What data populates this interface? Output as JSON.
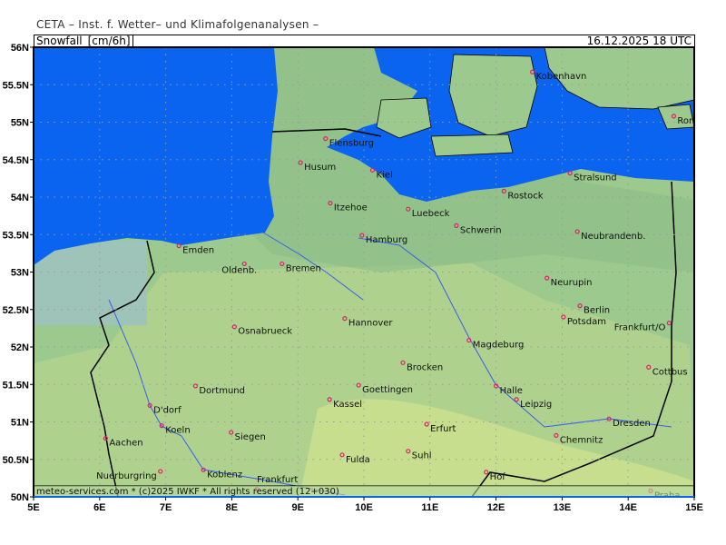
{
  "header": {
    "title": "CETA – Inst. f. Wetter– und Klimafolgenanalysen –",
    "parameter": "Snowfall_[cm/6h]",
    "valid_time": "16.12.2025 18 UTC"
  },
  "footer": {
    "credit": "meteo-services.com * (c)2025 IWKF * All rights reserved (12+030)"
  },
  "colors": {
    "sea": "#0a64f0",
    "land": "#9cc98e",
    "land_light": "#c3dc8f",
    "river": "#3a5cf0",
    "border": "#000000",
    "city": "#e0206a",
    "highlight_label": "#00c000"
  },
  "map": {
    "lon_range": [
      5,
      15
    ],
    "lat_range": [
      50,
      56
    ],
    "lon_ticks": [
      "5E",
      "6E",
      "7E",
      "8E",
      "9E",
      "10E",
      "11E",
      "12E",
      "13E",
      "14E",
      "15E"
    ],
    "lat_ticks": [
      "50N",
      "50.5N",
      "51N",
      "51.5N",
      "52N",
      "52.5N",
      "53N",
      "53.5N",
      "54N",
      "54.5N",
      "55N",
      "55.5N",
      "56N"
    ],
    "cities": [
      {
        "name": "Kobenhavn",
        "lon": 12.55,
        "lat": 55.67
      },
      {
        "name": "Ronne",
        "lon": 14.69,
        "lat": 55.08
      },
      {
        "name": "Flensburg",
        "lon": 9.42,
        "lat": 54.78
      },
      {
        "name": "Husum",
        "lon": 9.04,
        "lat": 54.46
      },
      {
        "name": "Kiel",
        "lon": 10.13,
        "lat": 54.36
      },
      {
        "name": "Stralsund",
        "lon": 13.12,
        "lat": 54.32
      },
      {
        "name": "Rostock",
        "lon": 12.12,
        "lat": 54.08
      },
      {
        "name": "Itzehoe",
        "lon": 9.49,
        "lat": 53.92
      },
      {
        "name": "Luebeck",
        "lon": 10.67,
        "lat": 53.84
      },
      {
        "name": "Schwerin",
        "lon": 11.4,
        "lat": 53.62
      },
      {
        "name": "Neubrandenb.",
        "lon": 13.23,
        "lat": 53.54
      },
      {
        "name": "Hamburg",
        "lon": 9.97,
        "lat": 53.49
      },
      {
        "name": "Emden",
        "lon": 7.2,
        "lat": 53.35
      },
      {
        "name": "Oldenb.",
        "lon": 8.19,
        "lat": 53.11,
        "label": "below"
      },
      {
        "name": "Bremen",
        "lon": 8.76,
        "lat": 53.11
      },
      {
        "name": "Neurupin",
        "lon": 12.77,
        "lat": 52.92
      },
      {
        "name": "Berlin",
        "lon": 13.27,
        "lat": 52.55
      },
      {
        "name": "Potsdam",
        "lon": 13.02,
        "lat": 52.4
      },
      {
        "name": "Hannover",
        "lon": 9.71,
        "lat": 52.38
      },
      {
        "name": "Frankfurt/O",
        "lon": 14.62,
        "lat": 52.32,
        "label": "left"
      },
      {
        "name": "Osnabrueck",
        "lon": 8.04,
        "lat": 52.27
      },
      {
        "name": "Magdeburg",
        "lon": 11.59,
        "lat": 52.09
      },
      {
        "name": "Brocken",
        "lon": 10.59,
        "lat": 51.79,
        "highlight": true
      },
      {
        "name": "Cottbus",
        "lon": 14.31,
        "lat": 51.73
      },
      {
        "name": "Dortmund",
        "lon": 7.45,
        "lat": 51.48
      },
      {
        "name": "Goettingen",
        "lon": 9.92,
        "lat": 51.49
      },
      {
        "name": "Halle",
        "lon": 12.0,
        "lat": 51.48
      },
      {
        "name": "Kassel",
        "lon": 9.48,
        "lat": 51.3
      },
      {
        "name": "Leipzig",
        "lon": 12.31,
        "lat": 51.3
      },
      {
        "name": "D'dorf",
        "lon": 6.76,
        "lat": 51.22
      },
      {
        "name": "Erfurt",
        "lon": 10.95,
        "lat": 50.97
      },
      {
        "name": "Dresden",
        "lon": 13.71,
        "lat": 51.04
      },
      {
        "name": "Koeln",
        "lon": 6.94,
        "lat": 50.95
      },
      {
        "name": "Siegen",
        "lon": 7.99,
        "lat": 50.86
      },
      {
        "name": "Chemnitz",
        "lon": 12.91,
        "lat": 50.82
      },
      {
        "name": "Aachen",
        "lon": 6.09,
        "lat": 50.78
      },
      {
        "name": "Fulda",
        "lon": 9.67,
        "lat": 50.56
      },
      {
        "name": "Suhl",
        "lon": 10.67,
        "lat": 50.61
      },
      {
        "name": "Nuerburgring",
        "lon": 6.92,
        "lat": 50.34,
        "label": "left"
      },
      {
        "name": "Koblenz",
        "lon": 7.57,
        "lat": 50.36
      },
      {
        "name": "Hof",
        "lon": 11.85,
        "lat": 50.33
      },
      {
        "name": "Frankfurt",
        "lon": 8.38,
        "lat": 50.1,
        "label": "above"
      },
      {
        "name": "Praha",
        "lon": 14.34,
        "lat": 50.08
      }
    ]
  }
}
